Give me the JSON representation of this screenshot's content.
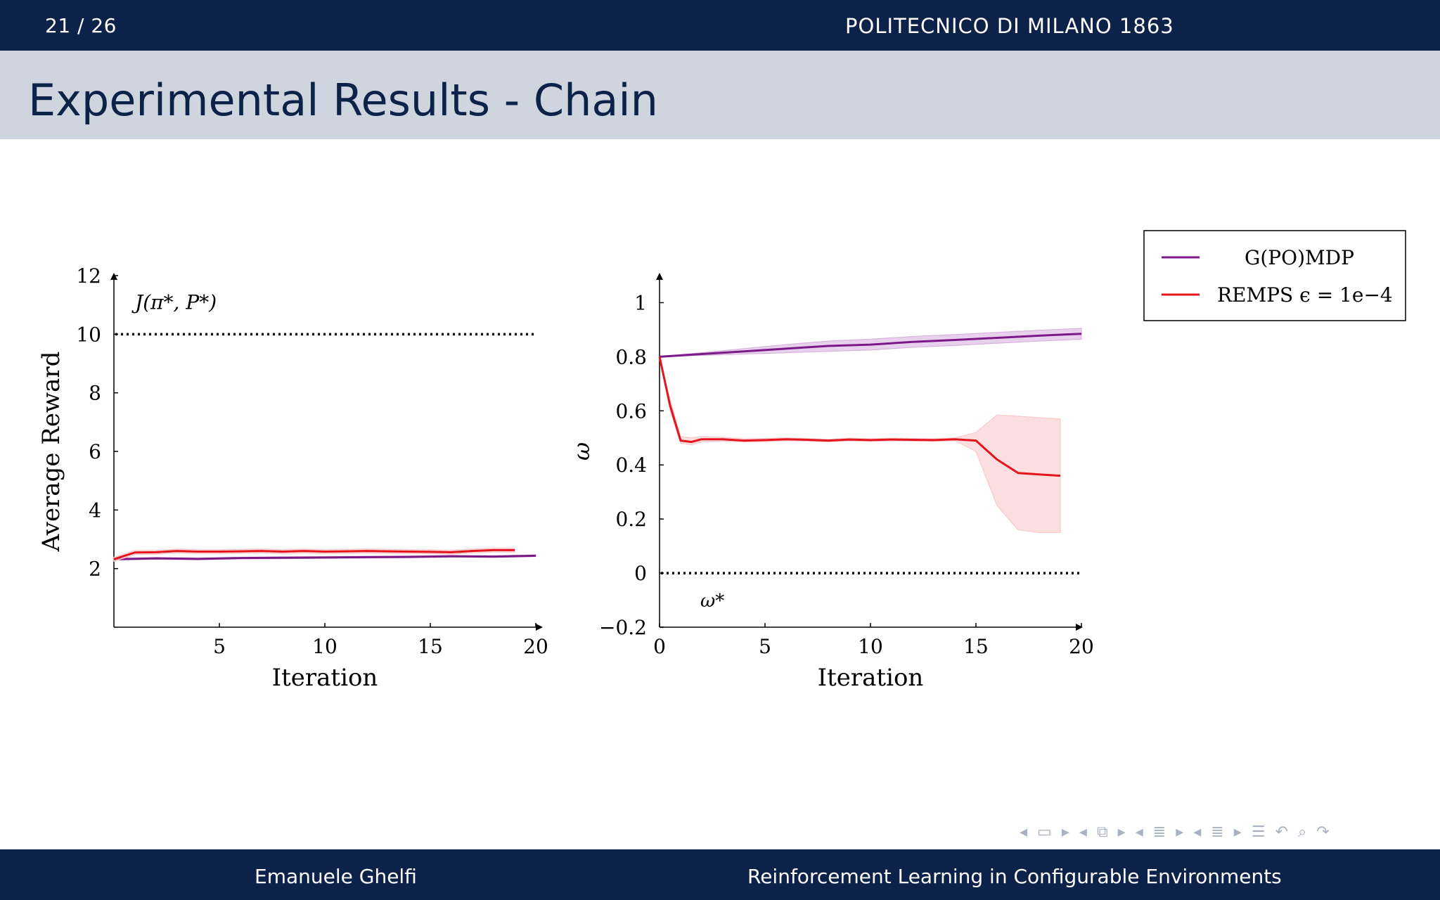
{
  "header": {
    "page_number": "21 / 26",
    "institution": "POLITECNICO DI MILANO 1863"
  },
  "slide": {
    "title": "Experimental Results - Chain"
  },
  "footer": {
    "author": "Emanuele Ghelfi",
    "talk_title": "Reinforcement Learning in Configurable Environments"
  },
  "colors": {
    "gpomdp": "#7b1a86",
    "remps": "#e3151c",
    "gpomdp_band": "#d9b3df",
    "remps_band": "#f9c9cc",
    "bar": "#0c2249",
    "title_bg": "#ced5de"
  },
  "legend": {
    "entries": [
      "G(PO)MDP",
      "REMPS ϵ = 1e−4"
    ]
  },
  "nav_icons": [
    "nav-prev-icon",
    "frame-icon",
    "nav-next-icon",
    "nav-prev-icon",
    "slides-icon",
    "nav-next-icon",
    "nav-prev-icon",
    "section-icon",
    "nav-next-icon",
    "nav-prev-icon",
    "subsection-icon",
    "nav-next-icon",
    "outline-icon",
    "undo-icon",
    "search-icon",
    "redo-icon"
  ],
  "chart_data": [
    {
      "type": "line",
      "title": "",
      "xlabel": "Iteration",
      "ylabel": "Average Reward",
      "xlim": [
        0,
        20
      ],
      "ylim": [
        0,
        12
      ],
      "xticks": [
        5,
        10,
        15,
        20
      ],
      "xtick_labels": [
        "5",
        "10",
        "15",
        "20"
      ],
      "yticks": [
        2,
        4,
        6,
        8,
        10,
        12
      ],
      "ytick_labels": [
        "2",
        "4",
        "6",
        "8",
        "10",
        "12"
      ],
      "reference_line": {
        "y": 10,
        "label": "J(π*, P*)",
        "style": "dotted"
      },
      "series": [
        {
          "name": "G(PO)MDP",
          "x": [
            0,
            2,
            4,
            6,
            8,
            10,
            12,
            14,
            16,
            18,
            20
          ],
          "values": [
            2.32,
            2.35,
            2.33,
            2.36,
            2.37,
            2.38,
            2.39,
            2.4,
            2.42,
            2.41,
            2.44
          ],
          "band": 0.03
        },
        {
          "name": "REMPS ϵ = 1e−4",
          "x": [
            0,
            1,
            2,
            3,
            4,
            5,
            6,
            7,
            8,
            9,
            10,
            11,
            12,
            13,
            14,
            15,
            16,
            17,
            18,
            19
          ],
          "values": [
            2.32,
            2.55,
            2.56,
            2.6,
            2.58,
            2.58,
            2.59,
            2.6,
            2.58,
            2.6,
            2.58,
            2.59,
            2.6,
            2.59,
            2.58,
            2.57,
            2.56,
            2.6,
            2.63,
            2.63
          ],
          "band": 0.07
        }
      ]
    },
    {
      "type": "line",
      "title": "",
      "xlabel": "Iteration",
      "ylabel": "ω",
      "xlim": [
        0,
        20
      ],
      "ylim": [
        -0.2,
        1.1
      ],
      "xticks": [
        0,
        5,
        10,
        15,
        20
      ],
      "xtick_labels": [
        "0",
        "5",
        "10",
        "15",
        "20"
      ],
      "yticks": [
        -0.2,
        0,
        0.2,
        0.4,
        0.6,
        0.8,
        1
      ],
      "ytick_labels": [
        "−0.2",
        "0",
        "0.2",
        "0.4",
        "0.6",
        "0.8",
        "1"
      ],
      "reference_line": {
        "y": 0,
        "label": "ω*",
        "style": "dotted"
      },
      "series": [
        {
          "name": "G(PO)MDP",
          "x": [
            0,
            2,
            4,
            6,
            8,
            10,
            12,
            14,
            16,
            18,
            20
          ],
          "values": [
            0.8,
            0.81,
            0.82,
            0.83,
            0.84,
            0.845,
            0.855,
            0.862,
            0.87,
            0.878,
            0.885
          ],
          "lower": [
            0.8,
            0.805,
            0.81,
            0.815,
            0.82,
            0.825,
            0.835,
            0.842,
            0.85,
            0.858,
            0.865
          ],
          "upper": [
            0.8,
            0.815,
            0.83,
            0.845,
            0.858,
            0.865,
            0.875,
            0.882,
            0.89,
            0.898,
            0.905
          ]
        },
        {
          "name": "REMPS ϵ = 1e−4",
          "x": [
            0,
            0.5,
            1,
            1.5,
            2,
            3,
            4,
            5,
            6,
            7,
            8,
            9,
            10,
            11,
            12,
            13,
            14,
            15,
            16,
            17,
            18,
            19
          ],
          "values": [
            0.8,
            0.62,
            0.49,
            0.485,
            0.495,
            0.495,
            0.49,
            0.492,
            0.495,
            0.493,
            0.49,
            0.494,
            0.492,
            0.494,
            0.493,
            0.492,
            0.495,
            0.49,
            0.42,
            0.37,
            0.365,
            0.36
          ],
          "lower": [
            0.8,
            0.6,
            0.48,
            0.475,
            0.485,
            0.488,
            0.485,
            0.486,
            0.49,
            0.488,
            0.485,
            0.489,
            0.487,
            0.489,
            0.488,
            0.487,
            0.49,
            0.45,
            0.25,
            0.16,
            0.15,
            0.15
          ],
          "upper": [
            0.8,
            0.64,
            0.505,
            0.5,
            0.505,
            0.502,
            0.497,
            0.498,
            0.5,
            0.498,
            0.495,
            0.499,
            0.497,
            0.499,
            0.498,
            0.497,
            0.5,
            0.52,
            0.585,
            0.58,
            0.575,
            0.57
          ]
        }
      ]
    }
  ]
}
